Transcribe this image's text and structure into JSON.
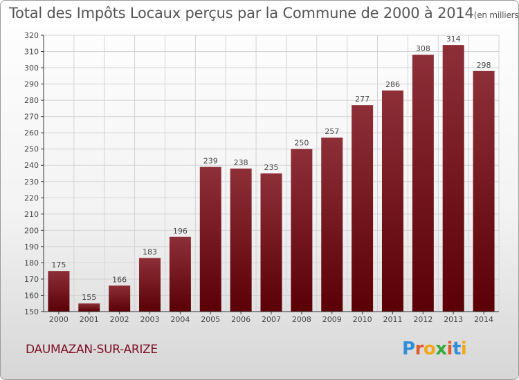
{
  "title": {
    "main": "Total des Impôts Locaux perçus par la Commune de 2000 à 2014",
    "unit": "(en milliers d'€)"
  },
  "commune": "DAUMAZAN-SUR-ARIZE",
  "logo": {
    "text": "Proxiti",
    "letters": [
      {
        "ch": "P",
        "color": "#2f8fd8"
      },
      {
        "ch": "r",
        "color": "#e05b2b"
      },
      {
        "ch": "o",
        "color": "#f2a71b"
      },
      {
        "ch": "x",
        "color": "#3aa83a"
      },
      {
        "ch": "i",
        "color": "#e05b2b"
      },
      {
        "ch": "t",
        "color": "#2f8fd8"
      },
      {
        "ch": "i",
        "color": "#f2a71b"
      }
    ]
  },
  "colors": {
    "bar_top": "#8e2f38",
    "bar_bottom": "#5a0006",
    "grid": "#d3d3d3",
    "axis": "#333333"
  },
  "chart_data": {
    "type": "bar",
    "categories": [
      "2000",
      "2001",
      "2002",
      "2003",
      "2004",
      "2005",
      "2006",
      "2007",
      "2008",
      "2009",
      "2010",
      "2011",
      "2012",
      "2013",
      "2014"
    ],
    "values": [
      175,
      155,
      166,
      183,
      196,
      239,
      238,
      235,
      250,
      257,
      277,
      286,
      308,
      314,
      298
    ],
    "ylim": [
      150,
      320
    ],
    "yticks": [
      150,
      160,
      170,
      180,
      190,
      200,
      210,
      220,
      230,
      240,
      250,
      260,
      270,
      280,
      290,
      300,
      310,
      320
    ],
    "grid": true,
    "legend": "none"
  }
}
